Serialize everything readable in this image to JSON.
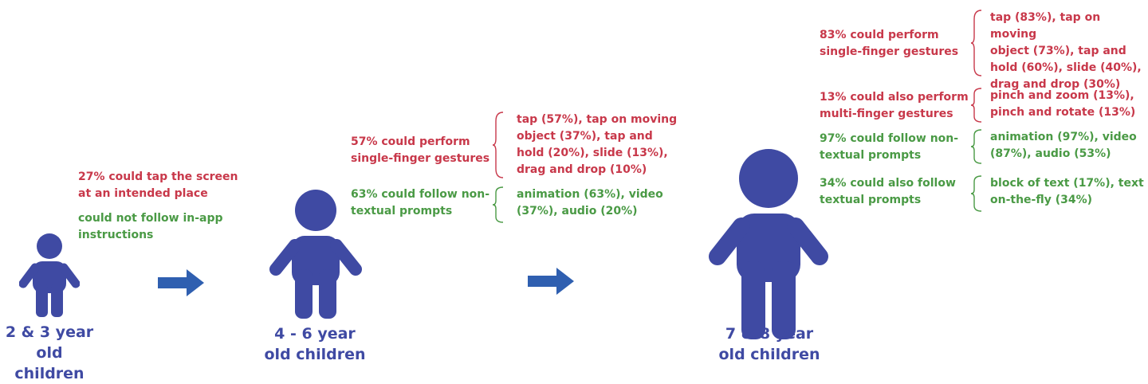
{
  "colors": {
    "figure": "#3f4aa3",
    "red": "#c8384a",
    "green": "#4a9a45"
  },
  "stage1": {
    "age": "2 & 3 year\nold children",
    "ability": "27% could tap the screen\nat an intended place",
    "prompts": "could not follow in-app\ninstructions"
  },
  "stage2": {
    "age": "4 - 6 year\nold children",
    "gestures": "57% could perform\nsingle-finger gestures",
    "gestures_detail": "tap (57%), tap on moving\nobject (37%), tap and\nhold (20%), slide (13%),\ndrag and drop (10%)",
    "prompts": "63% could follow non-\ntextual prompts",
    "prompts_detail": "animation (63%), video\n(37%), audio (20%)"
  },
  "stage3": {
    "age": "7 & 8 year\nold children",
    "single": "83% could perform\nsingle-finger gestures",
    "single_detail": "tap (83%), tap on moving\nobject (73%), tap and\nhold (60%), slide (40%),\ndrag and drop (30%)",
    "multi": "13% could also perform\nmulti-finger gestures",
    "multi_detail": "pinch and zoom (13%),\npinch and rotate (13%)",
    "nontextual": "97% could follow non-\ntextual prompts",
    "nontextual_detail": "animation (97%), video\n(87%), audio (53%)",
    "textual": "34% could also follow\ntextual prompts",
    "textual_detail": "block of text (17%), text\non-the-fly (34%)"
  }
}
